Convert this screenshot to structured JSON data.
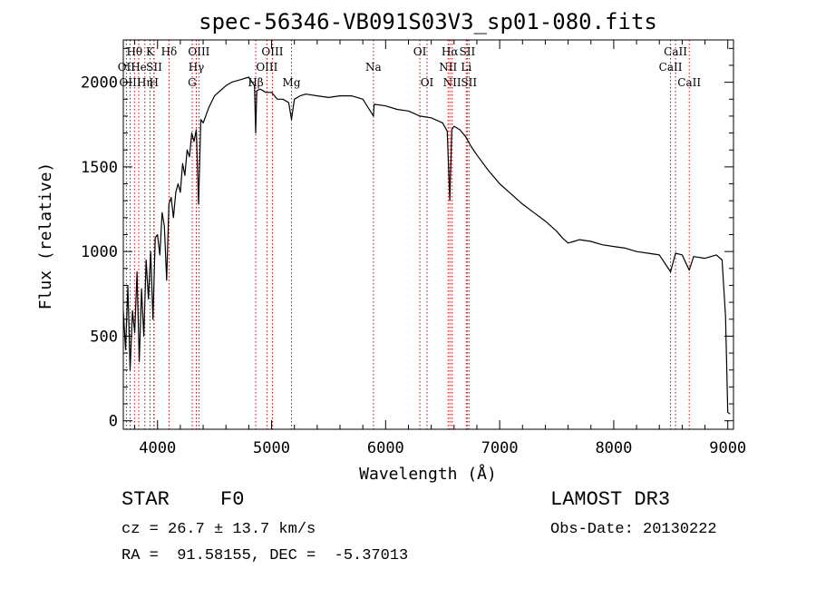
{
  "chart_data": {
    "type": "line",
    "title": "spec-56346-VB091S03V3_sp01-080.fits",
    "xlabel": "Wavelength (Å)",
    "ylabel": "Flux (relative)",
    "xlim": [
      3700,
      9050
    ],
    "ylim": [
      -50,
      2250
    ],
    "xticks": [
      4000,
      5000,
      6000,
      7000,
      8000,
      9000
    ],
    "yticks": [
      0,
      500,
      1000,
      1500,
      2000
    ],
    "grid": false,
    "line_color": "#000000",
    "marker_color": "#cc0000",
    "x": [
      3700,
      3720,
      3740,
      3760,
      3780,
      3800,
      3820,
      3840,
      3860,
      3880,
      3900,
      3920,
      3940,
      3960,
      3980,
      4000,
      4020,
      4040,
      4060,
      4080,
      4100,
      4120,
      4140,
      4160,
      4180,
      4200,
      4220,
      4240,
      4260,
      4280,
      4300,
      4320,
      4340,
      4360,
      4380,
      4400,
      4450,
      4500,
      4550,
      4600,
      4650,
      4700,
      4750,
      4800,
      4850,
      4861,
      4870,
      4900,
      4950,
      5000,
      5050,
      5100,
      5150,
      5175,
      5200,
      5250,
      5300,
      5400,
      5500,
      5600,
      5700,
      5800,
      5893,
      5900,
      6000,
      6100,
      6200,
      6300,
      6400,
      6500,
      6540,
      6563,
      6580,
      6600,
      6650,
      6700,
      6750,
      6800,
      6900,
      7000,
      7100,
      7200,
      7300,
      7400,
      7500,
      7550,
      7600,
      7650,
      7700,
      7800,
      7900,
      8000,
      8100,
      8200,
      8300,
      8400,
      8498,
      8542,
      8600,
      8662,
      8700,
      8800,
      8900,
      8950,
      8980,
      9000,
      9020
    ],
    "y": [
      650,
      420,
      800,
      300,
      650,
      520,
      880,
      350,
      780,
      500,
      950,
      720,
      1000,
      600,
      1080,
      1100,
      980,
      1230,
      1150,
      830,
      1280,
      1320,
      1200,
      1350,
      1400,
      1350,
      1520,
      1450,
      1600,
      1560,
      1700,
      1650,
      1720,
      1280,
      1780,
      1760,
      1850,
      1920,
      1950,
      1980,
      2000,
      2010,
      2020,
      2030,
      1980,
      1700,
      1950,
      1960,
      1940,
      1940,
      1900,
      1900,
      1880,
      1780,
      1900,
      1920,
      1930,
      1920,
      1910,
      1920,
      1920,
      1900,
      1800,
      1870,
      1860,
      1840,
      1830,
      1800,
      1790,
      1760,
      1710,
      1300,
      1720,
      1740,
      1720,
      1680,
      1620,
      1570,
      1480,
      1400,
      1340,
      1280,
      1230,
      1180,
      1120,
      1080,
      1050,
      1060,
      1070,
      1060,
      1040,
      1030,
      1020,
      1000,
      990,
      980,
      880,
      990,
      980,
      890,
      970,
      960,
      980,
      950,
      620,
      50,
      40
    ],
    "lines": [
      {
        "label": "Hθ",
        "x": 3798,
        "row": 1
      },
      {
        "label": "OII",
        "x": 3727,
        "row": 2
      },
      {
        "label": "OIII",
        "x": 3760,
        "row": 3
      },
      {
        "label": "He",
        "x": 3835,
        "row": 2
      },
      {
        "label": "K",
        "x": 3934,
        "row": 1
      },
      {
        "label": "Hη",
        "x": 3889,
        "row": 3
      },
      {
        "label": "SII",
        "x": 3970,
        "row": 2
      },
      {
        "label": "H",
        "x": 3968,
        "row": 3
      },
      {
        "label": "Hδ",
        "x": 4101,
        "row": 1
      },
      {
        "label": "OIII",
        "x": 4363,
        "row": 1
      },
      {
        "label": "Hγ",
        "x": 4340,
        "row": 2
      },
      {
        "label": "G",
        "x": 4304,
        "row": 3
      },
      {
        "label": "OIII",
        "x": 5007,
        "row": 1
      },
      {
        "label": "OIII",
        "x": 4959,
        "row": 2
      },
      {
        "label": "Hβ",
        "x": 4861,
        "row": 3
      },
      {
        "label": "Mg",
        "x": 5175,
        "row": 3
      },
      {
        "label": "Na",
        "x": 5893,
        "row": 2
      },
      {
        "label": "OI",
        "x": 6300,
        "row": 1
      },
      {
        "label": "OI",
        "x": 6363,
        "row": 3
      },
      {
        "label": "Hα",
        "x": 6563,
        "row": 1
      },
      {
        "label": "SII",
        "x": 6716,
        "row": 1
      },
      {
        "label": "NII",
        "x": 6548,
        "row": 2
      },
      {
        "label": "Li",
        "x": 6707,
        "row": 2
      },
      {
        "label": "NII",
        "x": 6583,
        "row": 3
      },
      {
        "label": "SII",
        "x": 6731,
        "row": 3
      },
      {
        "label": "CaII",
        "x": 8542,
        "row": 1
      },
      {
        "label": "CaII",
        "x": 8498,
        "row": 2
      },
      {
        "label": "CaII",
        "x": 8662,
        "row": 3
      }
    ]
  },
  "info": {
    "class_label": "STAR",
    "subclass": "F0",
    "survey": "LAMOST DR3",
    "cz": "cz = 26.7 ± 13.7 km/s",
    "obs_date": "Obs-Date: 20130222",
    "coords": "RA =  91.58155, DEC =  -5.37013"
  }
}
